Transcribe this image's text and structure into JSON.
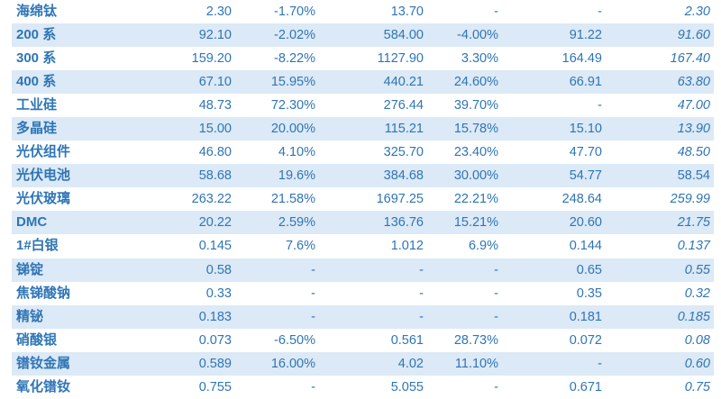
{
  "chart_data": {
    "type": "table",
    "title": "",
    "columns": [
      "label",
      "col1",
      "col2",
      "col3",
      "col4",
      "col5",
      "col6"
    ],
    "style": {
      "text_color": "#2E75B6",
      "band_color": "#DCE9F6",
      "background_color": "#FFFFFF"
    },
    "rows": [
      {
        "cells": [
          "海绵钛",
          "2.30",
          "-1.70%",
          "13.70",
          "-",
          "-",
          "2.30"
        ],
        "last_italic": true,
        "banded": false
      },
      {
        "cells": [
          "200 系",
          "92.10",
          "-2.02%",
          "584.00",
          "-4.00%",
          "91.22",
          "91.60"
        ],
        "last_italic": true,
        "banded": true
      },
      {
        "cells": [
          "300 系",
          "159.20",
          "-8.22%",
          "1127.90",
          "3.30%",
          "164.49",
          "167.40"
        ],
        "last_italic": true,
        "banded": false
      },
      {
        "cells": [
          "400 系",
          "67.10",
          "15.95%",
          "440.21",
          "24.60%",
          "66.91",
          "63.80"
        ],
        "last_italic": true,
        "banded": true
      },
      {
        "cells": [
          "工业硅",
          "48.73",
          "72.30%",
          "276.44",
          "39.70%",
          "-",
          "47.00"
        ],
        "last_italic": true,
        "banded": false
      },
      {
        "cells": [
          "多晶硅",
          "15.00",
          "20.00%",
          "115.21",
          "15.78%",
          "15.10",
          "13.90"
        ],
        "last_italic": true,
        "banded": true
      },
      {
        "cells": [
          "光伏组件",
          "46.80",
          "4.10%",
          "325.70",
          "23.40%",
          "47.70",
          "48.50"
        ],
        "last_italic": true,
        "banded": false
      },
      {
        "cells": [
          "光伏电池",
          "58.68",
          "19.6%",
          "384.68",
          "30.00%",
          "54.77",
          "58.54"
        ],
        "last_italic": false,
        "banded": true
      },
      {
        "cells": [
          "光伏玻璃",
          "263.22",
          "21.58%",
          "1697.25",
          "22.21%",
          "248.64",
          "259.99"
        ],
        "last_italic": true,
        "banded": false
      },
      {
        "cells": [
          "DMC",
          "20.22",
          "2.59%",
          "136.76",
          "15.21%",
          "20.60",
          "21.75"
        ],
        "last_italic": true,
        "banded": true
      },
      {
        "cells": [
          "1#白银",
          "0.145",
          "7.6%",
          "1.012",
          "6.9%",
          "0.144",
          "0.137"
        ],
        "last_italic": true,
        "banded": false
      },
      {
        "cells": [
          "锑锭",
          "0.58",
          "-",
          "-",
          "-",
          "0.65",
          "0.55"
        ],
        "last_italic": true,
        "banded": true
      },
      {
        "cells": [
          "焦锑酸钠",
          "0.33",
          "-",
          "-",
          "-",
          "0.35",
          "0.32"
        ],
        "last_italic": true,
        "banded": false
      },
      {
        "cells": [
          "精铋",
          "0.183",
          "-",
          "-",
          "-",
          "0.181",
          "0.185"
        ],
        "last_italic": true,
        "banded": true
      },
      {
        "cells": [
          "硝酸银",
          "0.073",
          "-6.50%",
          "0.561",
          "28.73%",
          "0.072",
          "0.08"
        ],
        "last_italic": true,
        "banded": false
      },
      {
        "cells": [
          "镨钕金属",
          "0.589",
          "16.00%",
          "4.02",
          "11.10%",
          "-",
          "0.60"
        ],
        "last_italic": true,
        "banded": true
      },
      {
        "cells": [
          "氧化镨钕",
          "0.755",
          "-",
          "5.055",
          "-",
          "0.671",
          "0.75"
        ],
        "last_italic": true,
        "banded": false
      }
    ]
  }
}
